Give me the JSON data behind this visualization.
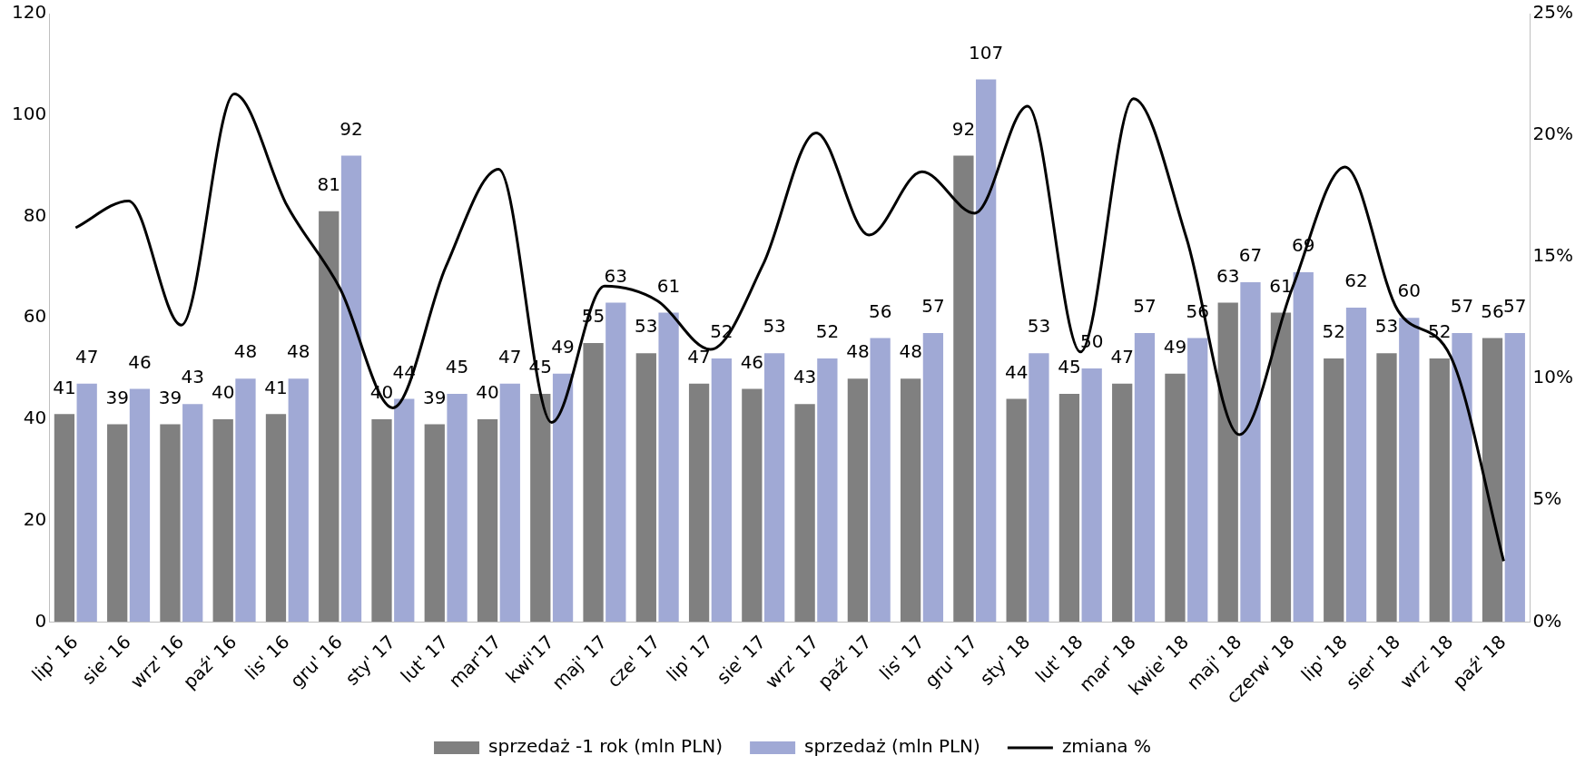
{
  "chart_data": {
    "type": "bar",
    "categories": [
      "lip' 16",
      "sie' 16",
      "wrz' 16",
      "paź' 16",
      "lis' 16",
      "gru' 16",
      "sty' 17",
      "lut' 17",
      "mar'17",
      "kwi'17",
      "maj' 17",
      "cze' 17",
      "lip' 17",
      "sie' 17",
      "wrz' 17",
      "paź' 17",
      "lis' 17",
      "gru' 17",
      "sty' 18",
      "lut' 18",
      "mar' 18",
      "kwie' 18",
      "maj' 18",
      "czerw' 18",
      "lip' 18",
      "sier' 18",
      "wrz' 18",
      "paź' 18"
    ],
    "series": [
      {
        "name": "sprzedaż -1 rok (mln PLN)",
        "color": "#808080",
        "values": [
          41,
          39,
          39,
          40,
          41,
          81,
          40,
          39,
          40,
          45,
          55,
          53,
          47,
          46,
          43,
          48,
          48,
          92,
          44,
          45,
          47,
          49,
          63,
          61,
          52,
          53,
          52,
          56
        ],
        "value_labels": [
          "41",
          "39",
          "39",
          "40",
          "41",
          "81",
          "40",
          "39",
          "40",
          "45",
          "55",
          "53",
          "47",
          "46",
          "43",
          "48",
          "48",
          "92",
          "44",
          "45",
          "47",
          "49",
          "63",
          "61",
          "52",
          "53",
          "52",
          "56"
        ]
      },
      {
        "name": "sprzedaż (mln PLN)",
        "color": "#a0a9d5",
        "values": [
          47,
          46,
          43,
          48,
          48,
          92,
          44,
          45,
          47,
          49,
          63,
          61,
          52,
          53,
          52,
          56,
          57,
          107,
          53,
          50,
          57,
          56,
          67,
          69,
          62,
          60,
          57,
          57
        ],
        "value_labels": [
          "47",
          "46",
          "43",
          "48",
          "48",
          "92",
          "44",
          "45",
          "47",
          "49",
          "63",
          "61",
          "52",
          "53",
          "52",
          "56",
          "57",
          "107",
          "53",
          "50",
          "57",
          "56",
          "67",
          "69",
          "62",
          "60",
          "57",
          "57"
        ]
      },
      {
        "name": "zmiana %",
        "type": "line",
        "axis": "y2",
        "color": "#000000",
        "values": [
          16.2,
          17.3,
          12.2,
          21.7,
          17.1,
          13.7,
          8.8,
          14.6,
          18.6,
          8.2,
          13.8,
          13.2,
          11.2,
          14.7,
          20.1,
          15.9,
          18.5,
          16.8,
          21.2,
          11.1,
          21.5,
          15.8,
          7.7,
          13.7,
          18.7,
          12.8,
          10.9,
          2.5
        ]
      }
    ],
    "ylim": [
      0,
      120
    ],
    "yticks": [
      0,
      20,
      40,
      60,
      80,
      100,
      120
    ],
    "y2lim": [
      0,
      25
    ],
    "y2ticks": [
      {
        "value": 0,
        "label": "0%"
      },
      {
        "value": 5,
        "label": "5%"
      },
      {
        "value": 10,
        "label": "10%"
      },
      {
        "value": 15,
        "label": "15%"
      },
      {
        "value": 20,
        "label": "20%"
      },
      {
        "value": 25,
        "label": "25%"
      }
    ],
    "legend": "bottom"
  }
}
